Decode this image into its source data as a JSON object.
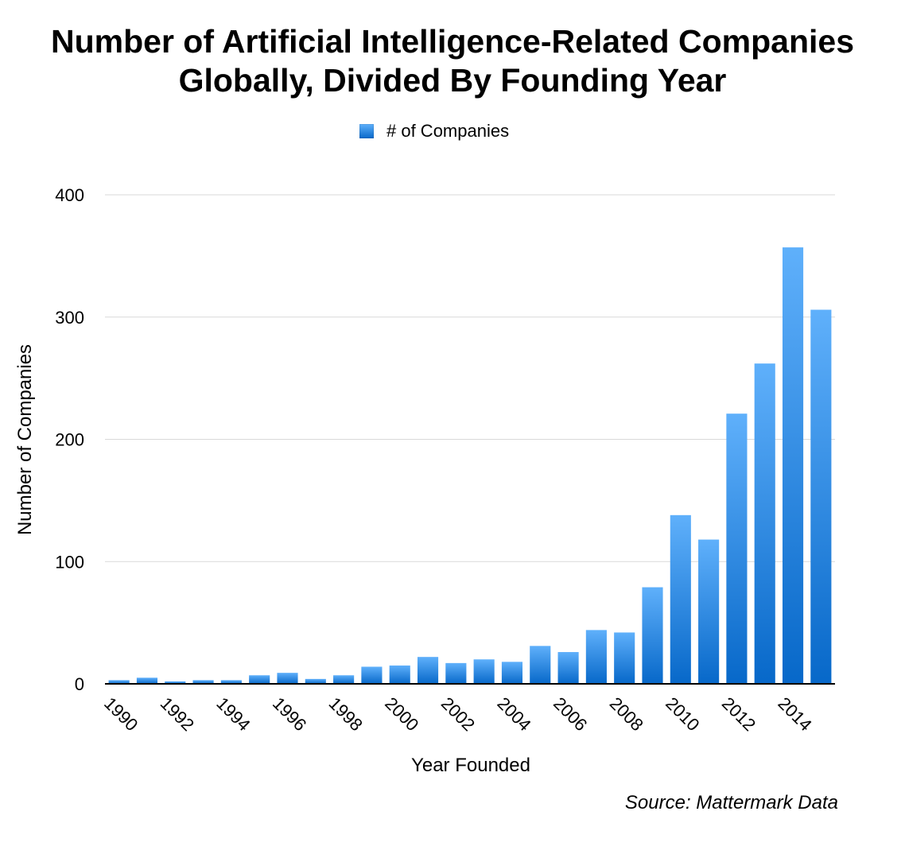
{
  "chart_data": {
    "type": "bar",
    "title_lines": [
      "Number of Artificial Intelligence-Related Companies",
      "Globally, Divided By Founding Year"
    ],
    "legend": [
      {
        "label": "# of Companies"
      }
    ],
    "legend_position": "top-center",
    "xlabel": "Year Founded",
    "ylabel": "Number of Companies",
    "source": "Source: Mattermark Data",
    "ylim": [
      0,
      400
    ],
    "yticks": [
      "0",
      "100",
      "200",
      "300",
      "400"
    ],
    "grid": true,
    "categories": [
      "1990",
      "1991",
      "1992",
      "1993",
      "1994",
      "1995",
      "1996",
      "1997",
      "1998",
      "1999",
      "2000",
      "2001",
      "2002",
      "2003",
      "2004",
      "2005",
      "2006",
      "2007",
      "2008",
      "2009",
      "2010",
      "2011",
      "2012",
      "2013",
      "2014",
      "2015"
    ],
    "xtick_labels": [
      "1990",
      "",
      "1992",
      "",
      "1994",
      "",
      "1996",
      "",
      "1998",
      "",
      "2000",
      "",
      "2002",
      "",
      "2004",
      "",
      "2006",
      "",
      "2008",
      "",
      "2010",
      "",
      "2012",
      "",
      "2014",
      ""
    ],
    "series": [
      {
        "name": "# of Companies",
        "values": [
          3,
          5,
          2,
          3,
          3,
          7,
          9,
          4,
          7,
          14,
          15,
          22,
          17,
          20,
          18,
          31,
          26,
          44,
          42,
          79,
          138,
          118,
          221,
          262,
          357,
          306
        ]
      }
    ],
    "colors": {
      "bar_top": "#5fb0fb",
      "bar_bottom": "#0768c9",
      "grid": "#d9d9d9",
      "axis": "#000000"
    }
  }
}
